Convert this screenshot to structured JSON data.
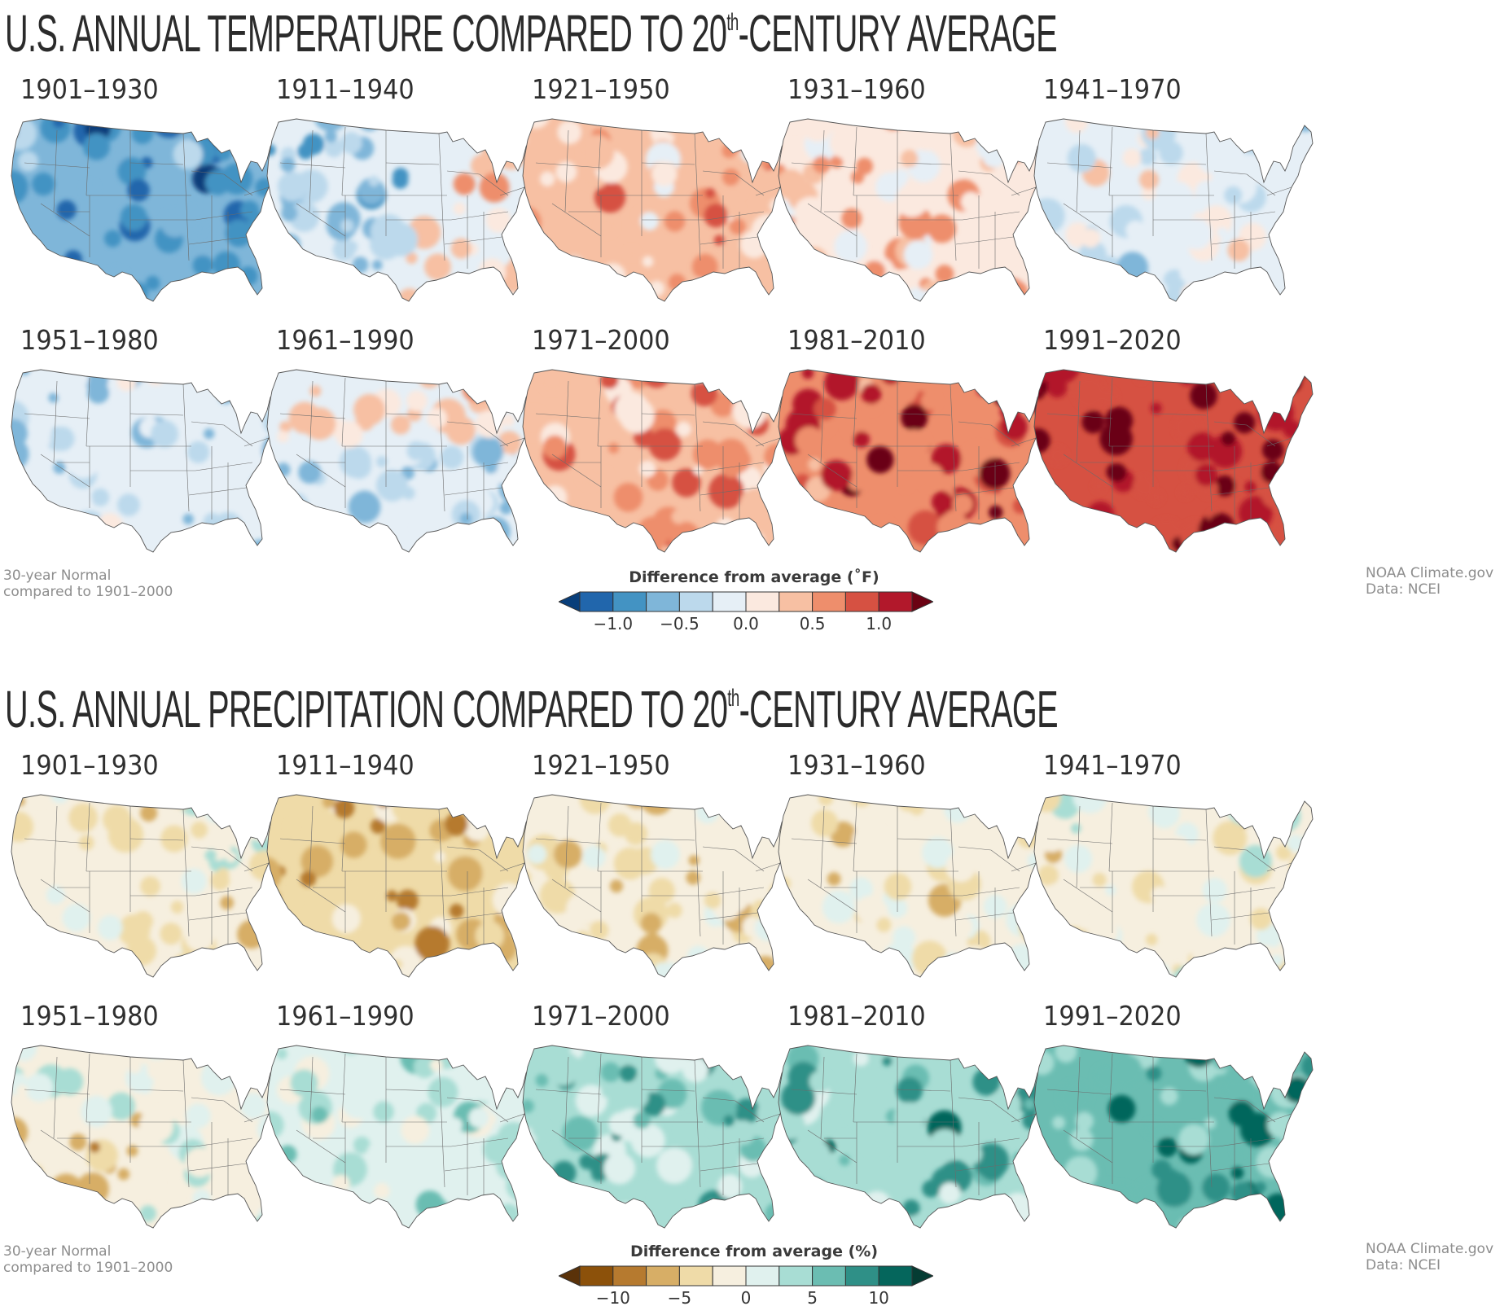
{
  "temperature": {
    "title_main": "U.S. ANNUAL TEMPERATURE COMPARED TO 20",
    "title_sup": "th",
    "title_rest": "-CENTURY AVERAGE",
    "footer_left_line1": "30-year Normal",
    "footer_left_line2": "compared to 1901–2000",
    "footer_right_line1": "NOAA Climate.gov",
    "footer_right_line2": "Data: NCEI",
    "legend": {
      "title": "Difference from average (˚F)",
      "ticks": [
        "−1.0",
        "−0.5",
        "0.0",
        "0.5",
        "1.0"
      ],
      "colors": [
        "#083e7a",
        "#2166ac",
        "#4393c3",
        "#7fb6d9",
        "#bcd9ec",
        "#e6eff6",
        "#fbe9df",
        "#f7c0a3",
        "#ee8e6c",
        "#d65142",
        "#b2182b",
        "#6b0213"
      ]
    },
    "panels": [
      {
        "period": "1901–1930",
        "dominant": "cool",
        "intensity": -0.9
      },
      {
        "period": "1911–1940",
        "dominant": "cool-west-warm-east",
        "intensity": -0.3
      },
      {
        "period": "1921–1950",
        "dominant": "warm",
        "intensity": 0.35
      },
      {
        "period": "1931–1960",
        "dominant": "warm",
        "intensity": 0.3
      },
      {
        "period": "1941–1970",
        "dominant": "neutral-cool",
        "intensity": -0.1
      },
      {
        "period": "1951–1980",
        "dominant": "cool",
        "intensity": -0.3
      },
      {
        "period": "1961–1990",
        "dominant": "mixed",
        "intensity": -0.05
      },
      {
        "period": "1971–2000",
        "dominant": "warm",
        "intensity": 0.5
      },
      {
        "period": "1981–2010",
        "dominant": "warm",
        "intensity": 0.9
      },
      {
        "period": "1991–2020",
        "dominant": "very-warm",
        "intensity": 1.2
      }
    ]
  },
  "precipitation": {
    "title_main": "U.S. ANNUAL PRECIPITATION COMPARED TO 20",
    "title_sup": "th",
    "title_rest": "-CENTURY AVERAGE",
    "footer_left_line1": "30-year Normal",
    "footer_left_line2": "compared to 1901–2000",
    "footer_right_line1": "NOAA Climate.gov",
    "footer_right_line2": "Data: NCEI",
    "legend": {
      "title": "Difference from average (%)",
      "ticks": [
        "−10",
        "−5",
        "0",
        "5",
        "10"
      ],
      "colors": [
        "#5a3209",
        "#8c510a",
        "#b67a2f",
        "#d7ae66",
        "#efdba8",
        "#f6efdf",
        "#e0f1ee",
        "#a8ddd4",
        "#6bbdb2",
        "#2f9087",
        "#05665c",
        "#053c33"
      ]
    },
    "panels": [
      {
        "period": "1901–1930",
        "dominant": "mixed",
        "intensity": -1
      },
      {
        "period": "1911–1940",
        "dominant": "dry",
        "intensity": -5
      },
      {
        "period": "1921–1950",
        "dominant": "dry",
        "intensity": -3
      },
      {
        "period": "1931–1960",
        "dominant": "dry",
        "intensity": -2
      },
      {
        "period": "1941–1970",
        "dominant": "mixed",
        "intensity": -1
      },
      {
        "period": "1951–1980",
        "dominant": "dry-southwest",
        "intensity": -2
      },
      {
        "period": "1961–1990",
        "dominant": "wet",
        "intensity": 2
      },
      {
        "period": "1971–2000",
        "dominant": "wet",
        "intensity": 5
      },
      {
        "period": "1981–2010",
        "dominant": "wet",
        "intensity": 6
      },
      {
        "period": "1991–2020",
        "dominant": "wet",
        "intensity": 7
      }
    ]
  }
}
